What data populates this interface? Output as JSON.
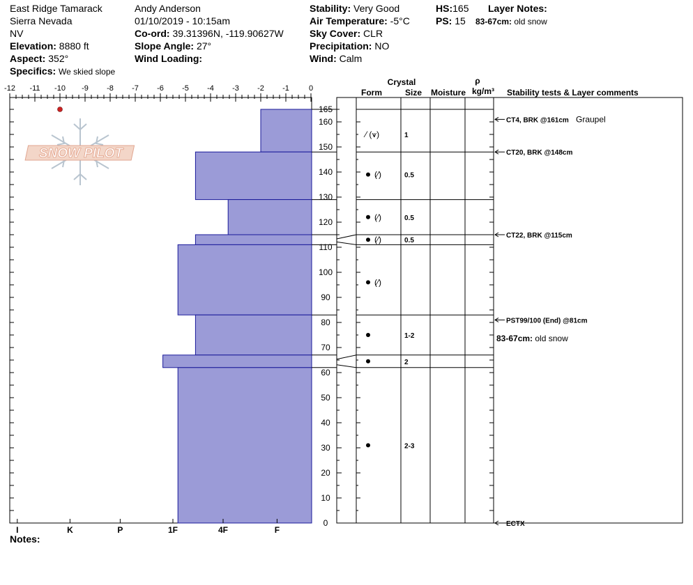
{
  "header": {
    "location": "East Ridge Tamarack",
    "range": "Sierra Nevada",
    "state": "NV",
    "elevation_label": "Elevation:",
    "elevation_value": "8880 ft",
    "aspect_label": "Aspect:",
    "aspect_value": "352°",
    "specifics_label": "Specifics:",
    "specifics_value": "We skied slope",
    "observer": "Andy Anderson",
    "datetime": "01/10/2019 - 10:15am",
    "coord_label": "Co-ord:",
    "coord_value": "39.31396N, -119.90627W",
    "slope_label": "Slope Angle:",
    "slope_value": "27°",
    "wind_loading_label": "Wind Loading:",
    "wind_loading_value": "",
    "stability_label": "Stability:",
    "stability_value": "Very Good",
    "air_temp_label": "Air Temperature:",
    "air_temp_value": "-5°C",
    "sky_label": "Sky Cover:",
    "sky_value": "CLR",
    "precip_label": "Precipitation:",
    "precip_value": "NO",
    "wind_label": "Wind:",
    "wind_value": "Calm",
    "hs_label": "HS:",
    "hs_value": "165",
    "ps_label": "PS:",
    "ps_value": "15",
    "layer_notes_label": "Layer Notes:",
    "layer_notes_range": "83-67cm:",
    "layer_notes_text": "old snow"
  },
  "notes_label": "Notes:",
  "logo_text": "SNOW PILOT",
  "columns": {
    "crystal": "Crystal",
    "form": "Form",
    "size": "Size",
    "moisture": "Moisture",
    "rho": "ρ",
    "density_unit": "kg/m³",
    "stability": "Stability tests & Layer comments"
  },
  "layer_comment": {
    "range": "83-67cm:",
    "text": "old snow"
  },
  "colors": {
    "hardness_fill": "#9b9bd7",
    "hardness_stroke": "#1a1a9a",
    "temp_point": "#cc2222"
  },
  "chart_data": {
    "type": "bar",
    "temperature_axis": {
      "ticks": [
        "-12",
        "-11",
        "-10",
        "-9",
        "-8",
        "-7",
        "-6",
        "-5",
        "-4",
        "-3",
        "-2",
        "-1",
        "0"
      ],
      "range": [
        -12,
        0
      ]
    },
    "height_axis": {
      "ticks": [
        "165",
        "160",
        "150",
        "140",
        "130",
        "120",
        "110",
        "100",
        "90",
        "80",
        "70",
        "60",
        "50",
        "40",
        "30",
        "20",
        "10",
        "0"
      ],
      "range": [
        0,
        165
      ]
    },
    "hardness_axis": {
      "ticks": [
        "I",
        "K",
        "P",
        "1F",
        "4F",
        "F"
      ]
    },
    "temperature_points": [
      {
        "temp": -10,
        "height": 165
      }
    ],
    "layers": [
      {
        "top": 165,
        "bottom": 148,
        "hardness_c": -2,
        "form": "PP",
        "size": "1"
      },
      {
        "top": 148,
        "bottom": 129,
        "hardness_c": -4.6,
        "form": "RG_PP",
        "size": "0.5"
      },
      {
        "top": 129,
        "bottom": 115,
        "hardness_c": -3.3,
        "form": "RG_PP",
        "size": "0.5"
      },
      {
        "top": 115,
        "bottom": 111,
        "hardness_c": -4.6,
        "form": "RG_PP",
        "size": "0.5"
      },
      {
        "top": 111,
        "bottom": 83,
        "hardness_c": -5.3,
        "form": "RG_PP",
        "size": ""
      },
      {
        "top": 83,
        "bottom": 67,
        "hardness_c": -4.6,
        "form": "RG",
        "size": "1-2"
      },
      {
        "top": 67,
        "bottom": 62,
        "hardness_c": -5.9,
        "form": "RG",
        "size": "2"
      },
      {
        "top": 62,
        "bottom": 0,
        "hardness_c": -5.3,
        "form": "RG",
        "size": "2-3"
      }
    ],
    "tests": [
      {
        "height": 161,
        "label": "CT4, BRK @161cm",
        "comment": "Graupel"
      },
      {
        "height": 148,
        "label": "CT20, BRK @148cm",
        "comment": ""
      },
      {
        "height": 115,
        "label": "CT22, BRK @115cm",
        "comment": ""
      },
      {
        "height": 81,
        "label": "PST99/100 (End) @81cm",
        "comment": ""
      },
      {
        "height": 0,
        "label": "ECTX",
        "comment": ""
      }
    ]
  }
}
